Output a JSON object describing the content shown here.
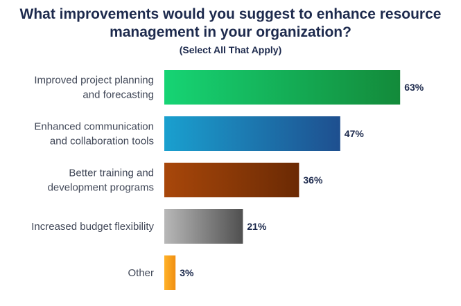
{
  "chart_data": {
    "type": "bar",
    "orientation": "horizontal",
    "title_lines": [
      "What improvements would you suggest to enhance resource",
      "management in your organization?"
    ],
    "subtitle": "(Select All That Apply)",
    "categories": [
      [
        "Improved project planning",
        "and forecasting"
      ],
      [
        "Enhanced communication",
        "and collaboration tools"
      ],
      [
        "Better training and",
        "development programs"
      ],
      [
        "Increased budget flexibility"
      ],
      [
        "Other"
      ]
    ],
    "values": [
      63,
      47,
      36,
      21,
      3
    ],
    "value_labels": [
      "63%",
      "47%",
      "36%",
      "21%",
      "3%"
    ],
    "unit": "%",
    "xlim": [
      0,
      100
    ],
    "grid": false,
    "legend": "none",
    "bar_colors": [
      [
        "#16d474",
        "#138a3a"
      ],
      [
        "#1aa0cf",
        "#1e4f8f"
      ],
      [
        "#a8470a",
        "#6b2a04"
      ],
      [
        "#b8b8b8",
        "#505050"
      ],
      [
        "#ffb228",
        "#f08f12"
      ]
    ]
  }
}
